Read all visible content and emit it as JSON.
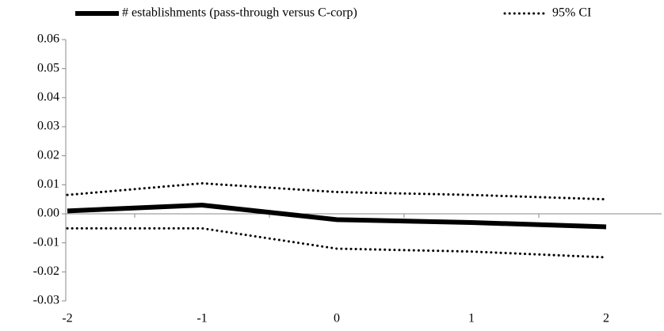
{
  "chart_data": {
    "type": "line",
    "categories": [
      "-2",
      "-1",
      "0",
      "1",
      "2"
    ],
    "series": [
      {
        "name": "# establishments (pass-through versus C-corp)",
        "color": "#000000",
        "values": [
          0.001,
          0.003,
          -0.002,
          -0.003,
          -0.0045
        ]
      }
    ],
    "ci": {
      "name": "95% CI",
      "color": "#000000",
      "upper": [
        0.0065,
        0.0105,
        0.0075,
        0.0065,
        0.005
      ],
      "lower": [
        -0.005,
        -0.005,
        -0.012,
        -0.013,
        -0.015
      ]
    },
    "ylim": [
      -0.03,
      0.06
    ],
    "yticks": [
      -0.03,
      -0.02,
      -0.01,
      {
        "value": 0,
        "label": "0.00"
      },
      0.01,
      0.02,
      0.03,
      0.04,
      0.05,
      0.06
    ],
    "grid": false
  }
}
